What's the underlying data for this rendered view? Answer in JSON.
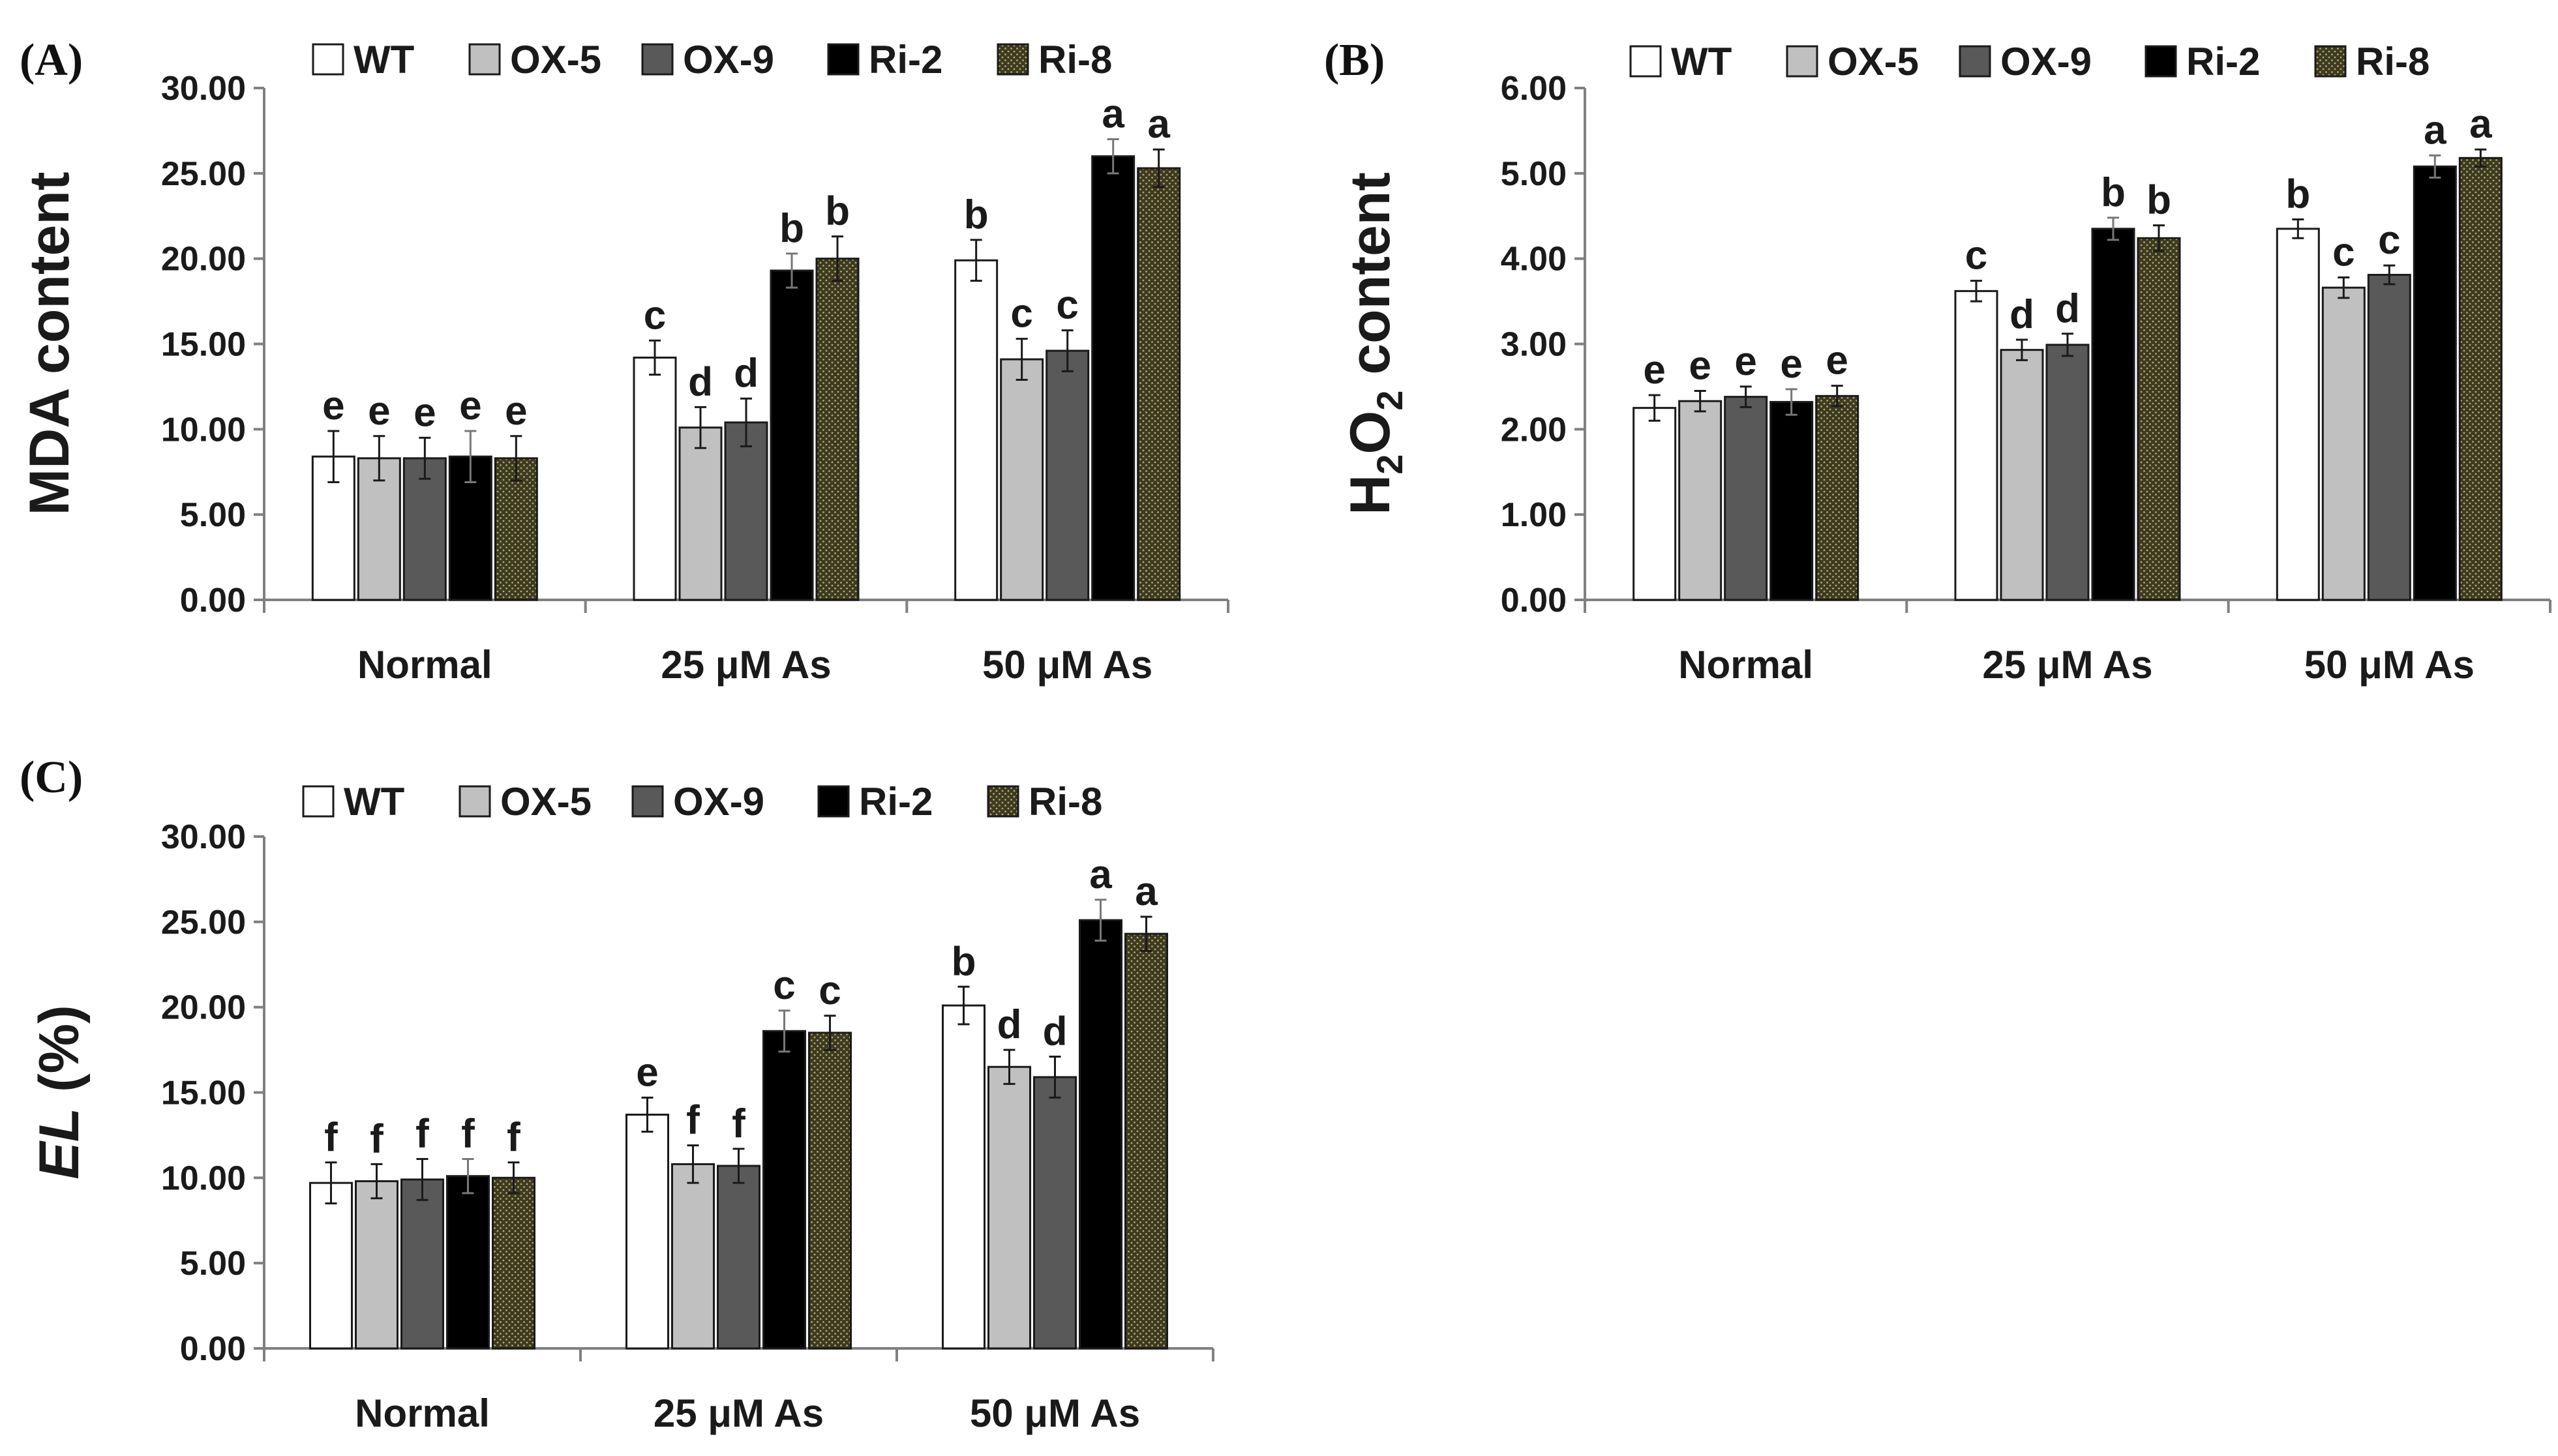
{
  "colors": {
    "WT": "#ffffff",
    "OX-5": "#c0c0c0",
    "OX-9": "#595959",
    "Ri-2": "#000000",
    "Ri-8": "#3d3a22",
    "axis": "#808080",
    "text": "#1a1a1a"
  },
  "chart_data": [
    {
      "type": "bar",
      "panel_label": "(A)",
      "title": "",
      "xlabel": "",
      "ylabel": "MDA content",
      "ylim": [
        0,
        30
      ],
      "yticks": [
        "0.00",
        "5.00",
        "10.00",
        "15.00",
        "20.00",
        "25.00",
        "30.00"
      ],
      "categories": [
        "Normal",
        "25 μM As",
        "50 μM As"
      ],
      "legend": [
        "WT",
        "OX-5",
        "OX-9",
        "Ri-2",
        "Ri-8"
      ],
      "legend_position": "top",
      "series": [
        {
          "name": "WT",
          "values": [
            8.4,
            14.2,
            19.9
          ],
          "errors": [
            1.5,
            1.0,
            1.2
          ],
          "letters": [
            "e",
            "c",
            "b"
          ]
        },
        {
          "name": "OX-5",
          "values": [
            8.3,
            10.1,
            14.1
          ],
          "errors": [
            1.3,
            1.2,
            1.2
          ],
          "letters": [
            "e",
            "d",
            "c"
          ]
        },
        {
          "name": "OX-9",
          "values": [
            8.3,
            10.4,
            14.6
          ],
          "errors": [
            1.2,
            1.4,
            1.2
          ],
          "letters": [
            "e",
            "d",
            "c"
          ]
        },
        {
          "name": "Ri-2",
          "values": [
            8.4,
            19.3,
            26.0
          ],
          "errors": [
            1.5,
            1.0,
            1.0
          ],
          "letters": [
            "e",
            "b",
            "a"
          ]
        },
        {
          "name": "Ri-8",
          "values": [
            8.3,
            20.0,
            25.3
          ],
          "errors": [
            1.3,
            1.3,
            1.1
          ],
          "letters": [
            "e",
            "b",
            "a"
          ]
        }
      ]
    },
    {
      "type": "bar",
      "panel_label": "(B)",
      "title": "",
      "xlabel": "",
      "ylabel": "H2O2 content",
      "ylabel_parts": [
        "H",
        "2",
        "O",
        "2",
        " content"
      ],
      "ylim": [
        0,
        6
      ],
      "yticks": [
        "0.00",
        "1.00",
        "2.00",
        "3.00",
        "4.00",
        "5.00",
        "6.00"
      ],
      "categories": [
        "Normal",
        "25 μM As",
        "50 μM As"
      ],
      "legend": [
        "WT",
        "OX-5",
        "OX-9",
        "Ri-2",
        "Ri-8"
      ],
      "legend_position": "top",
      "series": [
        {
          "name": "WT",
          "values": [
            2.25,
            3.62,
            4.35
          ],
          "errors": [
            0.15,
            0.12,
            0.11
          ],
          "letters": [
            "e",
            "c",
            "b"
          ]
        },
        {
          "name": "OX-5",
          "values": [
            2.33,
            2.93,
            3.66
          ],
          "errors": [
            0.12,
            0.12,
            0.12
          ],
          "letters": [
            "e",
            "d",
            "c"
          ]
        },
        {
          "name": "OX-9",
          "values": [
            2.38,
            2.99,
            3.81
          ],
          "errors": [
            0.12,
            0.13,
            0.11
          ],
          "letters": [
            "e",
            "d",
            "c"
          ]
        },
        {
          "name": "Ri-2",
          "values": [
            2.32,
            4.35,
            5.08
          ],
          "errors": [
            0.15,
            0.13,
            0.13
          ],
          "letters": [
            "e",
            "b",
            "a"
          ]
        },
        {
          "name": "Ri-8",
          "values": [
            2.39,
            4.24,
            5.18
          ],
          "errors": [
            0.12,
            0.15,
            0.1
          ],
          "letters": [
            "e",
            "b",
            "a"
          ]
        }
      ]
    },
    {
      "type": "bar",
      "panel_label": "(C)",
      "title": "",
      "xlabel": "",
      "ylabel": "EL (%)",
      "ylabel_parts": [
        "EL",
        " (%)"
      ],
      "ylim": [
        0,
        30
      ],
      "yticks": [
        "0.00",
        "5.00",
        "10.00",
        "15.00",
        "20.00",
        "25.00",
        "30.00"
      ],
      "categories": [
        "Normal",
        "25 μM As",
        "50 μM As"
      ],
      "legend": [
        "WT",
        "OX-5",
        "OX-9",
        "Ri-2",
        "Ri-8"
      ],
      "legend_position": "top",
      "series": [
        {
          "name": "WT",
          "values": [
            9.7,
            13.7,
            20.1
          ],
          "errors": [
            1.2,
            1.0,
            1.1
          ],
          "letters": [
            "f",
            "e",
            "b"
          ]
        },
        {
          "name": "OX-5",
          "values": [
            9.8,
            10.8,
            16.5
          ],
          "errors": [
            1.0,
            1.1,
            1.0
          ],
          "letters": [
            "f",
            "f",
            "d"
          ]
        },
        {
          "name": "OX-9",
          "values": [
            9.9,
            10.7,
            15.9
          ],
          "errors": [
            1.2,
            1.0,
            1.2
          ],
          "letters": [
            "f",
            "f",
            "d"
          ]
        },
        {
          "name": "Ri-2",
          "values": [
            10.1,
            18.6,
            25.1
          ],
          "errors": [
            1.0,
            1.2,
            1.2
          ],
          "letters": [
            "f",
            "c",
            "a"
          ]
        },
        {
          "name": "Ri-8",
          "values": [
            10.0,
            18.5,
            24.3
          ],
          "errors": [
            0.9,
            1.0,
            1.0
          ],
          "letters": [
            "f",
            "c",
            "a"
          ]
        }
      ]
    }
  ]
}
